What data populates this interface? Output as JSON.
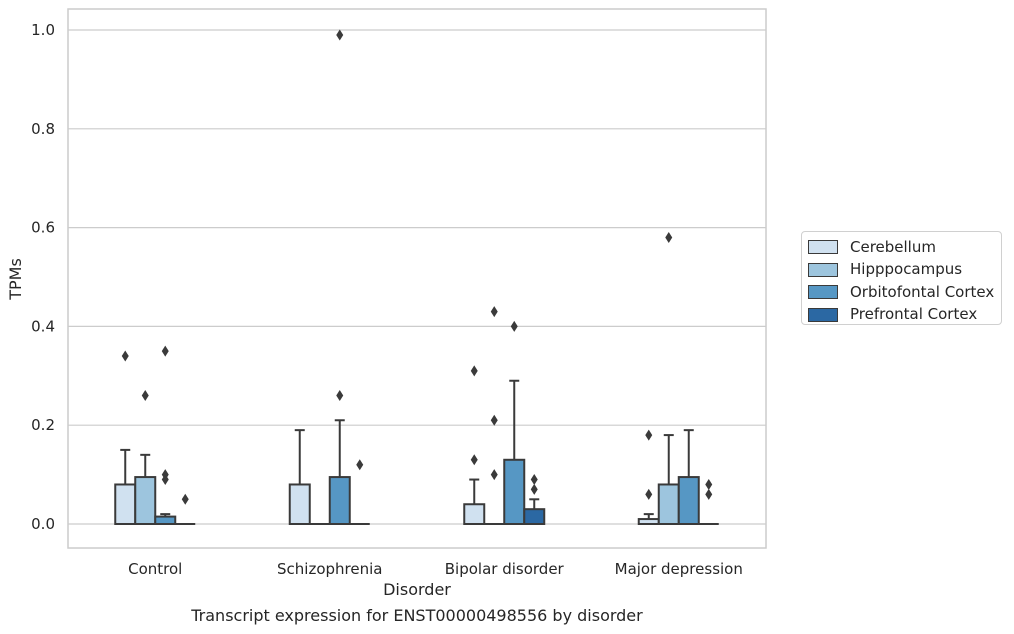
{
  "caption": "Transcript expression for ENST00000498556 by disorder",
  "legend": {
    "items": [
      {
        "label": "Cerebellum",
        "color": "#d0e1f0"
      },
      {
        "label": "Hipppocampus",
        "color": "#9dc5de"
      },
      {
        "label": "Orbitofontal Cortex",
        "color": "#5697c4"
      },
      {
        "label": "Prefrontal Cortex",
        "color": "#2b68a3"
      }
    ]
  },
  "chart_data": {
    "type": "box",
    "title": "",
    "xlabel": "Disorder",
    "ylabel": "TPMs",
    "categories": [
      "Control",
      "Schizophrenia",
      "Bipolar disorder",
      "Major depression"
    ],
    "ylim": [
      -0.05,
      1.04
    ],
    "yticks": [
      0.0,
      0.2,
      0.4,
      0.6,
      0.8,
      1.0
    ],
    "ytick_labels": [
      "0.0",
      "0.2",
      "0.4",
      "0.6",
      "0.8",
      "1.0"
    ],
    "grid": true,
    "legend_position": "right",
    "series": [
      {
        "name": "Cerebellum",
        "color": "#d0e1f0",
        "boxes": [
          {
            "q1": 0.0,
            "median": 0.0,
            "q3": 0.08,
            "whisker_low": 0.0,
            "whisker_high": 0.15,
            "outliers": [
              0.34
            ]
          },
          {
            "q1": 0.0,
            "median": 0.0,
            "q3": 0.08,
            "whisker_low": 0.0,
            "whisker_high": 0.19,
            "outliers": []
          },
          {
            "q1": 0.0,
            "median": 0.0,
            "q3": 0.04,
            "whisker_low": 0.0,
            "whisker_high": 0.09,
            "outliers": [
              0.13,
              0.31
            ]
          },
          {
            "q1": 0.0,
            "median": 0.0,
            "q3": 0.01,
            "whisker_low": 0.0,
            "whisker_high": 0.02,
            "outliers": [
              0.06,
              0.18
            ]
          }
        ]
      },
      {
        "name": "Hipppocampus",
        "color": "#9dc5de",
        "boxes": [
          {
            "q1": 0.0,
            "median": 0.0,
            "q3": 0.095,
            "whisker_low": 0.0,
            "whisker_high": 0.14,
            "outliers": [
              0.26
            ]
          },
          {
            "q1": 0.0,
            "median": 0.0,
            "q3": 0.0,
            "whisker_low": 0.0,
            "whisker_high": 0.0,
            "outliers": []
          },
          {
            "q1": 0.0,
            "median": 0.0,
            "q3": 0.0,
            "whisker_low": 0.0,
            "whisker_high": 0.0,
            "outliers": [
              0.1,
              0.21,
              0.43
            ]
          },
          {
            "q1": 0.0,
            "median": 0.0,
            "q3": 0.08,
            "whisker_low": 0.0,
            "whisker_high": 0.18,
            "outliers": [
              0.58
            ]
          }
        ]
      },
      {
        "name": "Orbitofontal Cortex",
        "color": "#5697c4",
        "boxes": [
          {
            "q1": 0.0,
            "median": 0.0,
            "q3": 0.015,
            "whisker_low": 0.0,
            "whisker_high": 0.02,
            "outliers": [
              0.09,
              0.1,
              0.35
            ]
          },
          {
            "q1": 0.0,
            "median": 0.0,
            "q3": 0.095,
            "whisker_low": 0.0,
            "whisker_high": 0.21,
            "outliers": [
              0.26,
              0.99
            ]
          },
          {
            "q1": 0.0,
            "median": 0.0,
            "q3": 0.13,
            "whisker_low": 0.0,
            "whisker_high": 0.29,
            "outliers": [
              0.4
            ]
          },
          {
            "q1": 0.0,
            "median": 0.0,
            "q3": 0.095,
            "whisker_low": 0.0,
            "whisker_high": 0.19,
            "outliers": []
          }
        ]
      },
      {
        "name": "Prefrontal Cortex",
        "color": "#2b68a3",
        "boxes": [
          {
            "q1": 0.0,
            "median": 0.0,
            "q3": 0.0,
            "whisker_low": 0.0,
            "whisker_high": 0.0,
            "outliers": [
              0.05
            ]
          },
          {
            "q1": 0.0,
            "median": 0.0,
            "q3": 0.0,
            "whisker_low": 0.0,
            "whisker_high": 0.0,
            "outliers": [
              0.12
            ]
          },
          {
            "q1": 0.0,
            "median": 0.0,
            "q3": 0.03,
            "whisker_low": 0.0,
            "whisker_high": 0.05,
            "outliers": [
              0.07,
              0.09
            ]
          },
          {
            "q1": 0.0,
            "median": 0.0,
            "q3": 0.0,
            "whisker_low": 0.0,
            "whisker_high": 0.0,
            "outliers": [
              0.06,
              0.08
            ]
          }
        ]
      }
    ]
  }
}
